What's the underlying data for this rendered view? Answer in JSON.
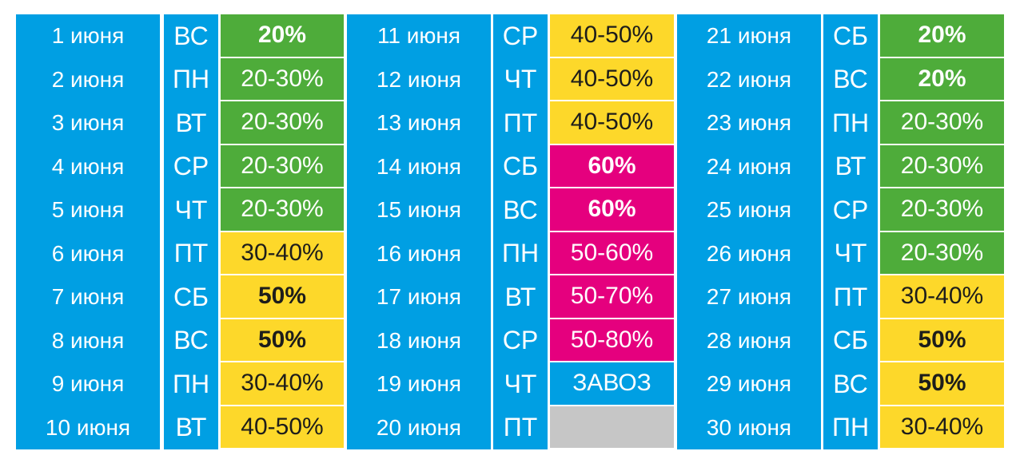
{
  "colors": {
    "blue": "#009fe3",
    "green": "#4eac3a",
    "yellow": "#fdd82a",
    "pink": "#e5007e",
    "gray": "#c6c6c6"
  },
  "groups": [
    {
      "rows": [
        {
          "date": "1 июня",
          "day": "ВС",
          "value": "20%",
          "color": "green",
          "bold": true
        },
        {
          "date": "2 июня",
          "day": "ПН",
          "value": "20-30%",
          "color": "green",
          "bold": false
        },
        {
          "date": "3 июня",
          "day": "ВТ",
          "value": "20-30%",
          "color": "green",
          "bold": false
        },
        {
          "date": "4 июня",
          "day": "СР",
          "value": "20-30%",
          "color": "green",
          "bold": false
        },
        {
          "date": "5 июня",
          "day": "ЧТ",
          "value": "20-30%",
          "color": "green",
          "bold": false
        },
        {
          "date": "6 июня",
          "day": "ПТ",
          "value": "30-40%",
          "color": "yellow",
          "bold": false
        },
        {
          "date": "7 июня",
          "day": "СБ",
          "value": "50%",
          "color": "yellow",
          "bold": true
        },
        {
          "date": "8 июня",
          "day": "ВС",
          "value": "50%",
          "color": "yellow",
          "bold": true
        },
        {
          "date": "9 июня",
          "day": "ПН",
          "value": "30-40%",
          "color": "yellow",
          "bold": false
        },
        {
          "date": "10 июня",
          "day": "ВТ",
          "value": "40-50%",
          "color": "yellow",
          "bold": false
        }
      ]
    },
    {
      "rows": [
        {
          "date": "11 июня",
          "day": "СР",
          "value": "40-50%",
          "color": "yellow",
          "bold": false
        },
        {
          "date": "12 июня",
          "day": "ЧТ",
          "value": "40-50%",
          "color": "yellow",
          "bold": false
        },
        {
          "date": "13 июня",
          "day": "ПТ",
          "value": "40-50%",
          "color": "yellow",
          "bold": false
        },
        {
          "date": "14 июня",
          "day": "СБ",
          "value": "60%",
          "color": "pink",
          "bold": true
        },
        {
          "date": "15 июня",
          "day": "ВС",
          "value": "60%",
          "color": "pink",
          "bold": true
        },
        {
          "date": "16 июня",
          "day": "ПН",
          "value": "50-60%",
          "color": "pink",
          "bold": false
        },
        {
          "date": "17 июня",
          "day": "ВТ",
          "value": "50-70%",
          "color": "pink",
          "bold": false
        },
        {
          "date": "18 июня",
          "day": "СР",
          "value": "50-80%",
          "color": "pink",
          "bold": false
        },
        {
          "date": "19 июня",
          "day": "ЧТ",
          "value": "ЗАВОЗ",
          "color": "blue",
          "bold": false
        },
        {
          "date": "20 июня",
          "day": "ПТ",
          "value": "",
          "color": "gray",
          "bold": false
        }
      ]
    },
    {
      "rows": [
        {
          "date": "21 июня",
          "day": "СБ",
          "value": "20%",
          "color": "green",
          "bold": true
        },
        {
          "date": "22 июня",
          "day": "ВС",
          "value": "20%",
          "color": "green",
          "bold": true
        },
        {
          "date": "23 июня",
          "day": "ПН",
          "value": "20-30%",
          "color": "green",
          "bold": false
        },
        {
          "date": "24 июня",
          "day": "ВТ",
          "value": "20-30%",
          "color": "green",
          "bold": false
        },
        {
          "date": "25 июня",
          "day": "СР",
          "value": "20-30%",
          "color": "green",
          "bold": false
        },
        {
          "date": "26 июня",
          "day": "ЧТ",
          "value": "20-30%",
          "color": "green",
          "bold": false
        },
        {
          "date": "27 июня",
          "day": "ПТ",
          "value": "30-40%",
          "color": "yellow",
          "bold": false
        },
        {
          "date": "28 июня",
          "day": "СБ",
          "value": "50%",
          "color": "yellow",
          "bold": true
        },
        {
          "date": "29 июня",
          "day": "ВС",
          "value": "50%",
          "color": "yellow",
          "bold": true
        },
        {
          "date": "30 июня",
          "day": "ПН",
          "value": "30-40%",
          "color": "yellow",
          "bold": false
        }
      ]
    }
  ]
}
